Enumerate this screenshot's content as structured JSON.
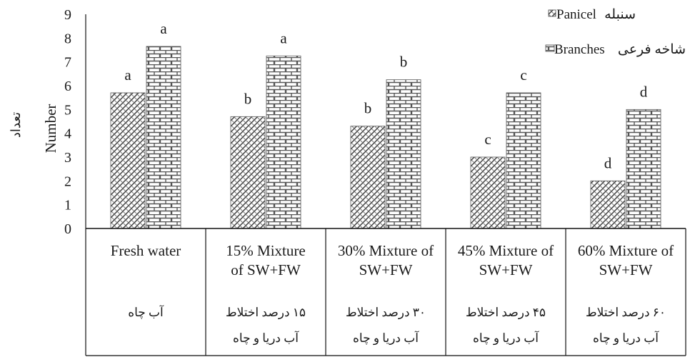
{
  "chart_data": {
    "type": "bar",
    "ylabel": "Number",
    "ylabel_fa": "تعداد",
    "ylim": [
      0,
      9
    ],
    "yticks": [
      0,
      1,
      2,
      3,
      4,
      5,
      6,
      7,
      8,
      9
    ],
    "legend_position": "top-right",
    "categories": [
      {
        "en_lines": [
          "Fresh water"
        ],
        "fa_lines": [
          "آب چاه"
        ]
      },
      {
        "en_lines": [
          "15%  Mixture",
          "of SW+FW"
        ],
        "fa_lines": [
          "۱۵ درصد اختلاط",
          "آب دریا و چاه"
        ]
      },
      {
        "en_lines": [
          "30% Mixture of",
          "SW+FW"
        ],
        "fa_lines": [
          "۳۰ درصد اختلاط",
          "آب دریا و چاه"
        ]
      },
      {
        "en_lines": [
          "45% Mixture of",
          "SW+FW"
        ],
        "fa_lines": [
          "۴۵ درصد اختلاط",
          "آب دریا و چاه"
        ]
      },
      {
        "en_lines": [
          "60% Mixture of",
          "SW+FW"
        ],
        "fa_lines": [
          "۶۰ درصد اختلاط",
          "آب دریا و چاه"
        ]
      }
    ],
    "series": [
      {
        "name": "Panicel",
        "name_fa": "سنبله",
        "pattern": "weave",
        "values": [
          5.7,
          4.7,
          4.3,
          3.0,
          2.0
        ],
        "letters": [
          "a",
          "b",
          "b",
          "c",
          "d"
        ]
      },
      {
        "name": "Branches",
        "name_fa": "شاخه فرعی",
        "pattern": "brick",
        "values": [
          7.65,
          7.25,
          6.25,
          5.7,
          5.0
        ],
        "letters": [
          "a",
          "a",
          "b",
          "c",
          "d"
        ]
      }
    ]
  }
}
